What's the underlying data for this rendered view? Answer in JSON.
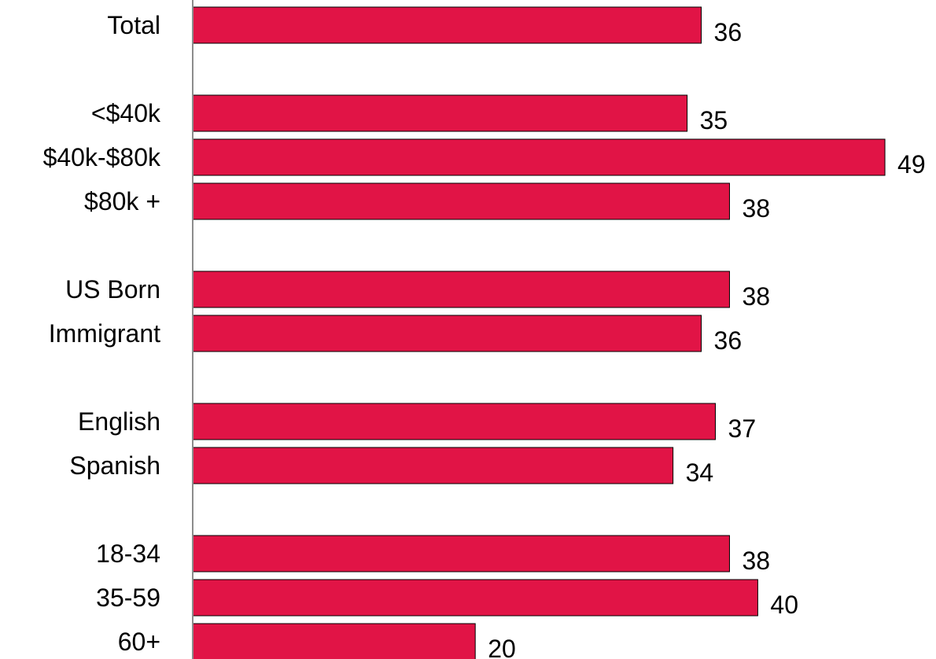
{
  "chart_data": {
    "type": "bar",
    "orientation": "horizontal",
    "categories": [
      "Total",
      "<$40k",
      "$40k-$80k",
      "$80k +",
      "US Born",
      "Immigrant",
      "English",
      "Spanish",
      "18-34",
      "35-59",
      "60+"
    ],
    "values": [
      36,
      35,
      49,
      38,
      38,
      36,
      37,
      34,
      38,
      40,
      20
    ],
    "groups": [
      [
        "Total"
      ],
      [
        "<$40k",
        "$40k-$80k",
        "$80k +"
      ],
      [
        "US Born",
        "Immigrant"
      ],
      [
        "English",
        "Spanish"
      ],
      [
        "18-34",
        "35-59",
        "60+"
      ]
    ],
    "title": "",
    "xlabel": "",
    "ylabel": "",
    "xlim": [
      0,
      49
    ],
    "grid": false,
    "legend": "none",
    "data_labels": true,
    "bar_color": "#E11446",
    "bar_outline_color": "#000000",
    "axis_color": "#8C8C8C"
  }
}
